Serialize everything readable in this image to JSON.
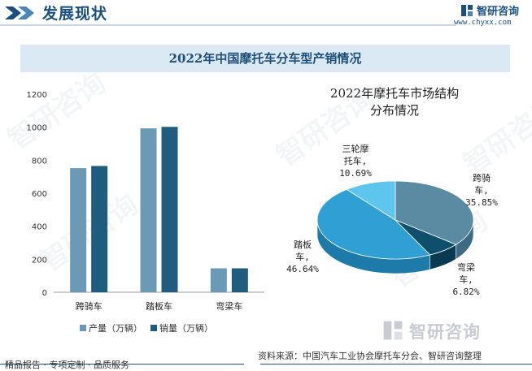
{
  "header": {
    "section_title": "发展现状",
    "brand_name": "智研咨询",
    "brand_url": "www.chyxx.com"
  },
  "title": "2022年中国摩托车分车型产销情况",
  "watermark_text": "智研咨询",
  "footer": {
    "brand_name": "智研咨询",
    "source": "资料来源：中国汽车工业协会摩托车分会、智研咨询整理",
    "tagline": "精品报告 · 专项定制 · 品质服务"
  },
  "colors": {
    "brand": "#1a4f80",
    "series_production": "#6a9ab5",
    "series_sales": "#1f5c7e",
    "band": "#dbe9f4"
  },
  "chart_data": [
    {
      "type": "bar",
      "categories": [
        "跨骑车",
        "踏板车",
        "弯梁车"
      ],
      "series": [
        {
          "name": "产量（万辆）",
          "values": [
            752,
            993,
            145
          ],
          "color": "#6a9ab5"
        },
        {
          "name": "销量（万辆）",
          "values": [
            765,
            1002,
            145
          ],
          "color": "#1f5c7e"
        }
      ],
      "ylim": [
        0,
        1200
      ],
      "yticks": [
        0,
        200,
        400,
        600,
        800,
        1000,
        1200
      ],
      "grid": false,
      "legend": "bottom"
    },
    {
      "type": "pie",
      "title": "2022年摩托车市场结构分布情况",
      "title_lines": [
        "2022年摩托车市场结构",
        "分布情况"
      ],
      "slices": [
        {
          "label": "跨骑车",
          "label_lines": [
            "跨骑",
            "车,",
            "35.85%"
          ],
          "value": 35.85,
          "color": "#5b8aa3",
          "side": "#3d6b83"
        },
        {
          "label": "弯梁车",
          "label_lines": [
            "弯梁",
            "车,",
            "6.82%"
          ],
          "value": 6.82,
          "color": "#0e4f6e",
          "side": "#0a3a52"
        },
        {
          "label": "踏板车",
          "label_lines": [
            "踏板",
            "车,",
            "46.64%"
          ],
          "value": 46.64,
          "color": "#2f9fd4",
          "side": "#1e7aa8"
        },
        {
          "label": "三轮摩托车",
          "label_lines": [
            "三轮摩",
            "托车,",
            "10.69%"
          ],
          "value": 10.69,
          "color": "#5ec6ee",
          "side": "#3aa3cc"
        }
      ],
      "legend": "none"
    }
  ]
}
